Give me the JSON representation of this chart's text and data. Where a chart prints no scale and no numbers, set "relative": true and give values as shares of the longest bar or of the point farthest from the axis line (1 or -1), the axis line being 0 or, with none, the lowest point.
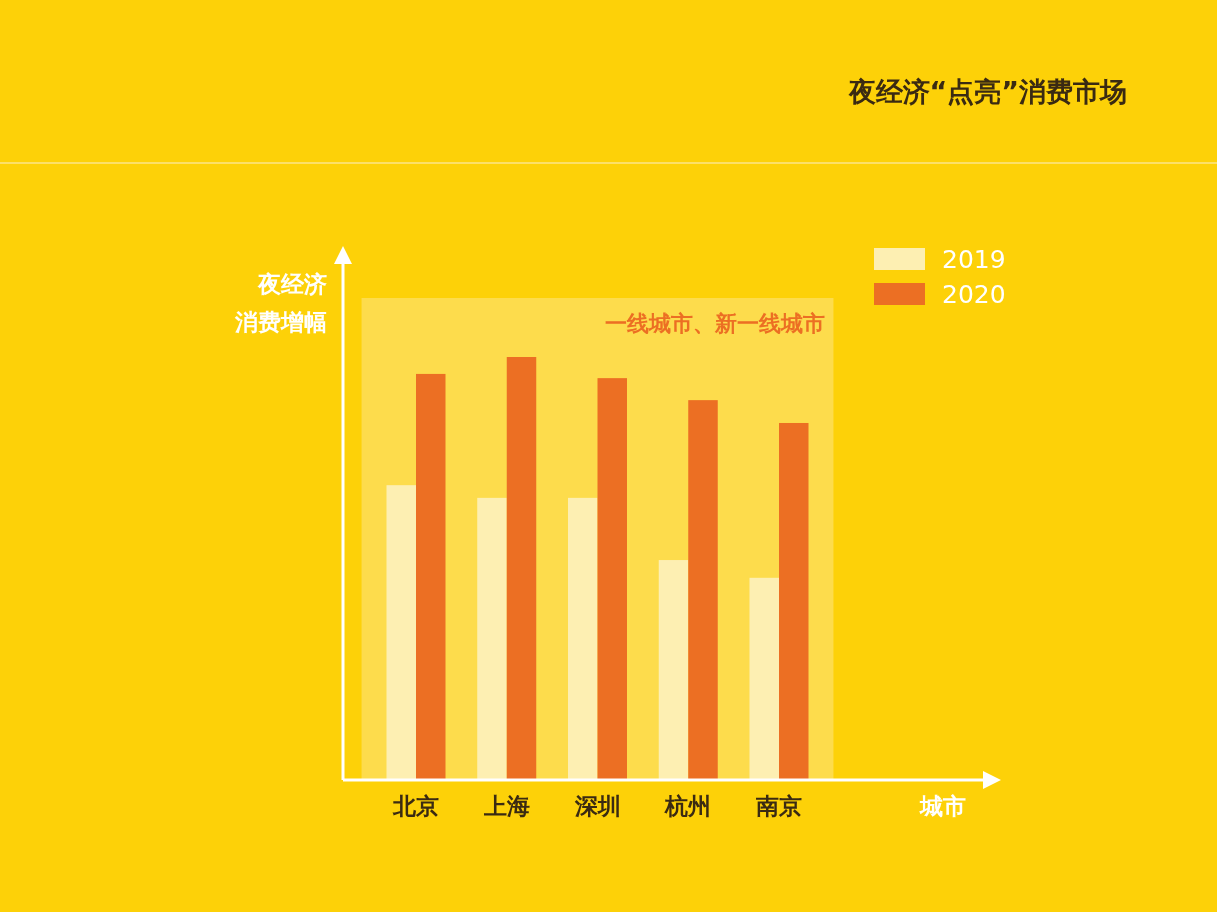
{
  "chart_data": {
    "type": "bar",
    "title": "夜经济“点亮”消费市场",
    "xlabel": "城市",
    "ylabel": "夜经济消费增幅",
    "relative": true,
    "legend": "top right",
    "categories": [
      "北京",
      "上海",
      "深圳",
      "杭州",
      "南京"
    ],
    "series": [
      {
        "name": "2019",
        "color": "#fdefb2",
        "values": [
          0.697,
          0.667,
          0.667,
          0.52,
          0.478
        ]
      },
      {
        "name": "2020",
        "color": "#ec6f23",
        "values": [
          0.96,
          1,
          0.95,
          0.898,
          0.844
        ]
      }
    ],
    "bands": [
      {
        "axis": "x",
        "from": "北京",
        "to": "南京",
        "label": "一线城市、新一线城市",
        "color": "#fddc4c"
      }
    ]
  }
}
